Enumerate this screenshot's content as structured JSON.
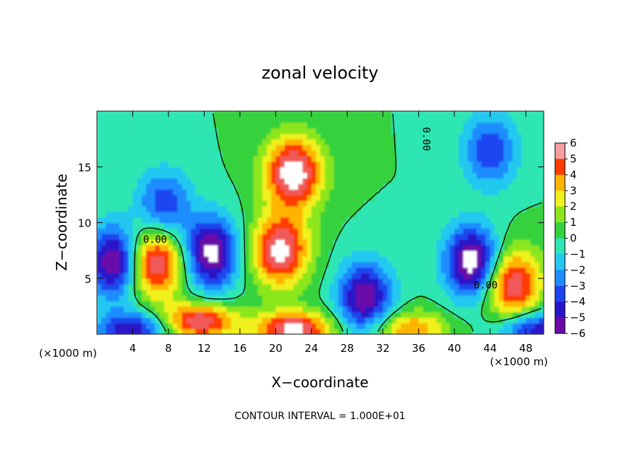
{
  "chart_data": {
    "type": "heatmap",
    "title": "zonal velocity",
    "xlabel": "X−coordinate",
    "ylabel": "Z−coordinate",
    "x_unit_label": "(×1000 m)",
    "z_unit_label": "(×1000 m)",
    "xlim": [
      0,
      50
    ],
    "ylim": [
      0,
      20
    ],
    "x_ticks": [
      4,
      8,
      12,
      16,
      20,
      24,
      28,
      32,
      36,
      40,
      44,
      48
    ],
    "y_ticks": [
      5,
      10,
      15
    ],
    "colorbar": {
      "min": -6,
      "max": 6,
      "ticks": [
        6,
        5,
        4,
        3,
        2,
        1,
        0,
        -1,
        -2,
        -3,
        -4,
        -5,
        -6
      ],
      "tick_labels": [
        "6",
        "5",
        "4",
        "3",
        "2",
        "1",
        "0",
        "−1",
        "−2",
        "−3",
        "−4",
        "−5",
        "−6"
      ]
    },
    "contour_labels": [
      "0.00",
      "0.00",
      "0.00"
    ],
    "footnote": "CONTOUR INTERVAL = 1.000E+01",
    "features": [
      {
        "kind": "max",
        "x": 22,
        "z": 14.5,
        "value": 7
      },
      {
        "kind": "max",
        "x": 20.5,
        "z": 7.5,
        "value": 6.5
      },
      {
        "kind": "max",
        "x": 6.5,
        "z": 6.5,
        "value": 6.5
      },
      {
        "kind": "max",
        "x": 11.5,
        "z": 1.2,
        "value": 6
      },
      {
        "kind": "max",
        "x": 46.5,
        "z": 4.5,
        "value": 6
      },
      {
        "kind": "max",
        "x": 22,
        "z": 0.5,
        "value": 6.5
      },
      {
        "kind": "max",
        "x": 35,
        "z": 0.5,
        "value": 4
      },
      {
        "kind": "min",
        "x": 42,
        "z": 6.5,
        "value": -7
      },
      {
        "kind": "min",
        "x": 12.8,
        "z": 7.3,
        "value": -6.5
      },
      {
        "kind": "min",
        "x": 2,
        "z": 6.5,
        "value": -6.5
      },
      {
        "kind": "min",
        "x": 30,
        "z": 3.3,
        "value": -6
      },
      {
        "kind": "min",
        "x": 44,
        "z": 16.5,
        "value": -4
      },
      {
        "kind": "min",
        "x": 7.5,
        "z": 11.5,
        "value": -4
      },
      {
        "kind": "min",
        "x": 4,
        "z": 0.5,
        "value": -5
      },
      {
        "kind": "min",
        "x": 49,
        "z": 0.5,
        "value": -5
      }
    ]
  }
}
